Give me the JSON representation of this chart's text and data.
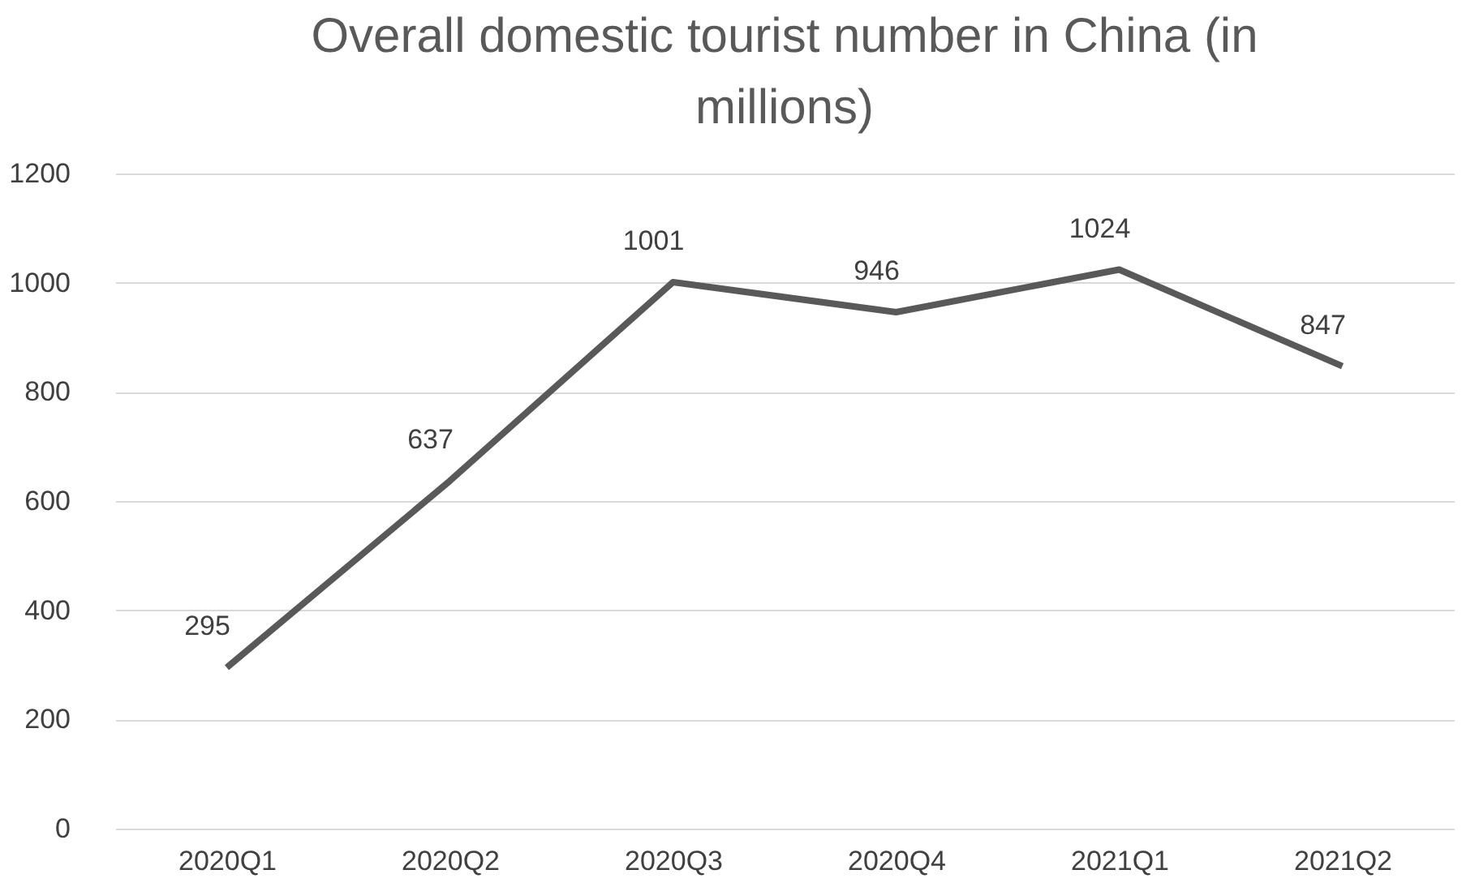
{
  "chart_data": {
    "type": "line",
    "title": "Overall domestic tourist number in China (in millions)",
    "categories": [
      "2020Q1",
      "2020Q2",
      "2020Q3",
      "2020Q4",
      "2021Q1",
      "2021Q2"
    ],
    "series": [
      {
        "color": "#595959",
        "values": [
          295,
          637,
          1001,
          946,
          1024,
          847
        ]
      }
    ],
    "ylim": [
      0,
      1200
    ],
    "yticks": [
      0,
      200,
      400,
      600,
      800,
      1000,
      1200
    ],
    "grid": "y",
    "data_labels": true,
    "marker": "none",
    "line_style": "solid"
  }
}
